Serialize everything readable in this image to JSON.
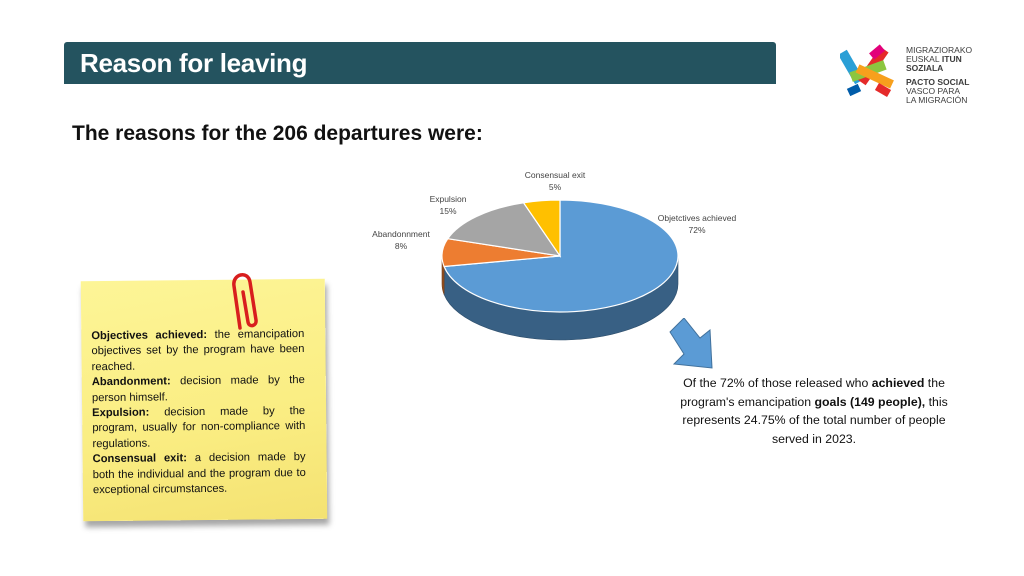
{
  "header": {
    "title": "Reason for leaving"
  },
  "logo": {
    "lines_top": [
      "MIGRAZIORAKO",
      "EUSKAL",
      "ITUN",
      "SOZIALA"
    ],
    "lines_bottom": [
      "PACTO SOCIAL",
      "VASCO PARA",
      "LA MIGRACIÓN"
    ]
  },
  "subtitle": "The reasons for the 206 departures were:",
  "chart_data": {
    "type": "pie",
    "style": "3d",
    "title": "",
    "slices": [
      {
        "label": "Objetctives achieved",
        "value": 72,
        "value_label": "72%",
        "color": "#5b9bd5"
      },
      {
        "label": "Abandonnment",
        "value": 8,
        "value_label": "8%",
        "color": "#ed7d31"
      },
      {
        "label": "Expulsion",
        "value": 15,
        "value_label": "15%",
        "color": "#a5a5a5"
      },
      {
        "label": "Consensual exit",
        "value": 5,
        "value_label": "5%",
        "color": "#ffc000"
      }
    ]
  },
  "note": {
    "items": [
      {
        "term": "Objectives achieved:",
        "text": " the emancipation objectives set by the program have been reached."
      },
      {
        "term": "Abandonment:",
        "text": " decision made by the person himself."
      },
      {
        "term": "Expulsion:",
        "text": " decision made by the program, usually for non-compliance with regulations."
      },
      {
        "term": "Consensual exit:",
        "text": " a decision made by both the individual and the program due to exceptional circumstances."
      }
    ]
  },
  "summary": {
    "part1": "Of the 72% of those released who ",
    "bold1": "achieved",
    "part2": " the program's emancipation ",
    "bold2": "goals (149 people),",
    "part3": " this represents 24.75% of the total number of people served in 2023."
  },
  "colors": {
    "header_bg": "#24535f",
    "note_bg": "#fbef86",
    "arrow": "#5b9bd5"
  }
}
